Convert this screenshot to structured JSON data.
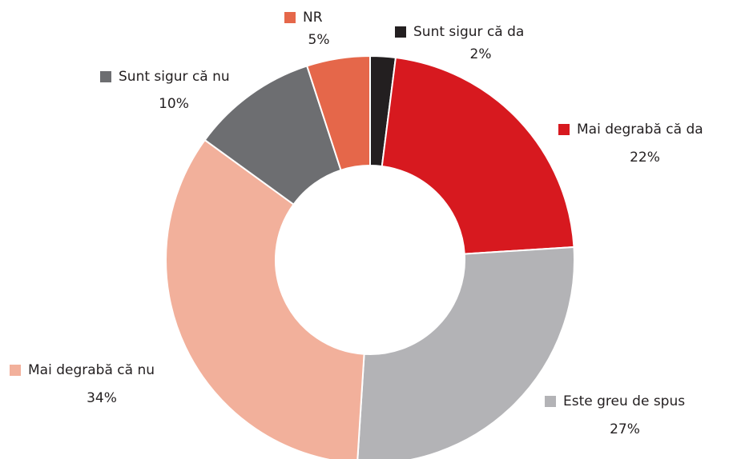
{
  "chart_data": {
    "type": "donut",
    "categories": [
      "Sunt sigur că da",
      "Mai degrabă că da",
      "Este greu de spus",
      "Mai degrabă că nu",
      "Sunt sigur că nu",
      "NR"
    ],
    "values": [
      2,
      22,
      27,
      34,
      10,
      5
    ],
    "value_labels": [
      "2%",
      "22%",
      "27%",
      "34%",
      "10%",
      "5%"
    ],
    "colors": [
      "#231f20",
      "#d7191f",
      "#b3b3b6",
      "#f2b09b",
      "#6d6e71",
      "#e5674a"
    ]
  }
}
